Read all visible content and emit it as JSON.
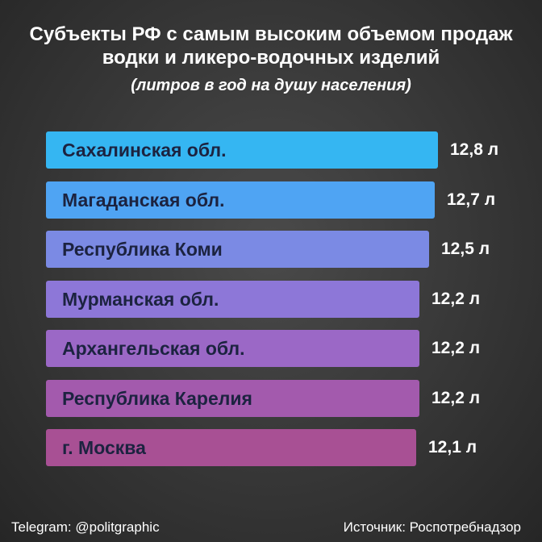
{
  "chart_data": {
    "type": "bar",
    "orientation": "horizontal",
    "title_lines": [
      "Субъекты РФ с самым высоким объемом продаж",
      "водки и ликеро-водочных изделий"
    ],
    "subtitle": "(литров в год на душу населения)",
    "categories": [
      "Сахалинская обл.",
      "Магаданская обл.",
      "Республика Коми",
      "Мурманская обл.",
      "Архангельская обл.",
      "Республика Карелия",
      "г. Москва"
    ],
    "values": [
      12.8,
      12.7,
      12.5,
      12.2,
      12.2,
      12.2,
      12.1
    ],
    "value_labels": [
      "12,8 л",
      "12,7 л",
      "12,5 л",
      "12,2 л",
      "12,2 л",
      "12,2 л",
      "12,1 л"
    ],
    "colors": [
      "#35b6f2",
      "#4fa4f3",
      "#7b8ae4",
      "#8d77d8",
      "#9b68c6",
      "#a35aad",
      "#a85094"
    ],
    "grid": false,
    "legend": "none"
  },
  "footer": {
    "telegram": "Telegram: @politgraphic",
    "source": "Источник: Роспотребнадзор"
  }
}
